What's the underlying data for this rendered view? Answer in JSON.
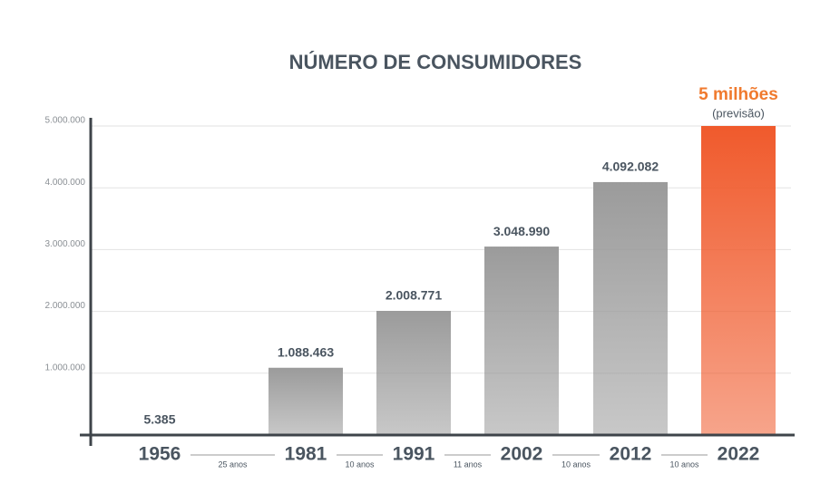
{
  "chart_data": {
    "type": "bar",
    "title": "NÚMERO DE CONSUMIDORES",
    "categories": [
      "1956",
      "1981",
      "1991",
      "2002",
      "2012",
      "2022"
    ],
    "values": [
      5385,
      1088463,
      2008771,
      3048990,
      4092082,
      5000000
    ],
    "value_labels": [
      "5.385",
      "1.088.463",
      "2.008.771",
      "3.048.990",
      "4.092.082",
      "5 milhões"
    ],
    "colors": [
      "#9b9b9b",
      "#9b9b9b",
      "#9b9b9b",
      "#9b9b9b",
      "#9b9b9b",
      "#f05a2c"
    ],
    "forecast_note": "(previsão)",
    "intervals": [
      "25 anos",
      "10 anos",
      "11 anos",
      "10 anos",
      "10 anos"
    ],
    "ylim": [
      0,
      5000000
    ],
    "yticks": [
      {
        "value": 1000000,
        "label": "1.000.000"
      },
      {
        "value": 2000000,
        "label": "2.000.000"
      },
      {
        "value": 3000000,
        "label": "3.000.000"
      },
      {
        "value": 4000000,
        "label": "4.000.000"
      },
      {
        "value": 5000000,
        "label": "5.000.000"
      }
    ],
    "grid": true
  }
}
